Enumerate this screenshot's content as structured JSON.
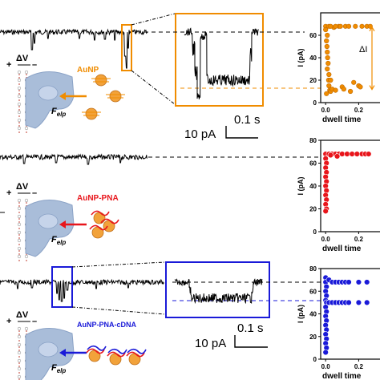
{
  "colors": {
    "orange": "#f08c00",
    "red": "#e8151b",
    "blue": "#1a1ad8",
    "trace": "#000000",
    "pore": "#a9bdd9",
    "np_fill": "#f2a23a"
  },
  "rows": [
    {
      "label": "AuNP",
      "label_color": "#f08c00",
      "dv_label": "ΔV",
      "plus": "+",
      "minus": "–",
      "force_label": "F",
      "force_sub": "elp",
      "zoom": {
        "scale_time": "0.1 s",
        "scale_current": "10 pA"
      },
      "scatter": {
        "ylabel": "I (pA)",
        "xlabel": "dwell time",
        "yticks": [
          "0",
          "20",
          "40",
          "60"
        ],
        "xticks": [
          "0.0",
          "0.2"
        ],
        "delta_label": "ΔI"
      }
    },
    {
      "label": "AuNP-PNA",
      "label_color": "#e8151b",
      "dv_label": "ΔV",
      "plus": "+",
      "minus": "–",
      "force_label": "F",
      "force_sub": "elp",
      "scatter": {
        "ylabel": "I (pA)",
        "xlabel": "dwell time",
        "yticks": [
          "0",
          "20",
          "40",
          "60",
          "80"
        ],
        "xticks": [
          "0.0",
          "0.2"
        ]
      }
    },
    {
      "label": "AuNP-PNA-cDNA",
      "label_color": "#1a1ad8",
      "dv_label": "ΔV",
      "plus": "+",
      "minus": "–",
      "force_label": "F",
      "force_sub": "elp",
      "zoom": {
        "scale_time": "0.1 s",
        "scale_current": "10 pA"
      },
      "scatter": {
        "ylabel": "I (pA)",
        "xlabel": "dwell time",
        "yticks": [
          "0",
          "20",
          "40",
          "60",
          "80"
        ],
        "xticks": [
          "0.0",
          "0.2"
        ]
      }
    }
  ],
  "chart_data": [
    {
      "type": "scatter",
      "name": "AuNP dwell time vs current",
      "xlabel": "dwell time",
      "ylabel": "I (pA)",
      "xlim": [
        -0.03,
        0.3
      ],
      "ylim": [
        0,
        80
      ],
      "baseline": 68,
      "blocked_level": 11,
      "points": [
        [
          0.0,
          68
        ],
        [
          0.0,
          65
        ],
        [
          0.01,
          60
        ],
        [
          0.005,
          55
        ],
        [
          0.008,
          50
        ],
        [
          0.01,
          45
        ],
        [
          0.012,
          40
        ],
        [
          0.015,
          35
        ],
        [
          0.01,
          30
        ],
        [
          0.02,
          25
        ],
        [
          0.018,
          20
        ],
        [
          0.02,
          15
        ],
        [
          0.025,
          11
        ],
        [
          0.03,
          10
        ],
        [
          0.005,
          8
        ],
        [
          0.04,
          12
        ],
        [
          0.06,
          11
        ],
        [
          0.1,
          14
        ],
        [
          0.11,
          12
        ],
        [
          0.15,
          10
        ],
        [
          0.17,
          18
        ],
        [
          0.2,
          15
        ],
        [
          0.21,
          14
        ],
        [
          0.03,
          20
        ],
        [
          0.08,
          68
        ],
        [
          0.12,
          68
        ],
        [
          0.18,
          68
        ],
        [
          0.22,
          68
        ],
        [
          0.25,
          68
        ],
        [
          0.27,
          68
        ],
        [
          0.05,
          67
        ],
        [
          0.02,
          68
        ],
        [
          0.03,
          68
        ],
        [
          0.06,
          68
        ],
        [
          0.09,
          68
        ],
        [
          0.14,
          68
        ]
      ]
    },
    {
      "type": "scatter",
      "name": "AuNP-PNA dwell time vs current",
      "xlabel": "dwell time",
      "ylabel": "I (pA)",
      "xlim": [
        -0.03,
        0.3
      ],
      "ylim": [
        0,
        80
      ],
      "points": [
        [
          0.0,
          68
        ],
        [
          0.0,
          64
        ],
        [
          0.005,
          60
        ],
        [
          0.0,
          56
        ],
        [
          0.005,
          52
        ],
        [
          0.0,
          48
        ],
        [
          0.005,
          44
        ],
        [
          0.0,
          40
        ],
        [
          0.005,
          36
        ],
        [
          0.0,
          32
        ],
        [
          0.005,
          28
        ],
        [
          0.0,
          24
        ],
        [
          0.005,
          20
        ],
        [
          0.0,
          18
        ],
        [
          0.02,
          68
        ],
        [
          0.04,
          68
        ],
        [
          0.06,
          68
        ],
        [
          0.08,
          68
        ],
        [
          0.1,
          68
        ],
        [
          0.13,
          68
        ],
        [
          0.16,
          68
        ],
        [
          0.19,
          68
        ],
        [
          0.22,
          68
        ],
        [
          0.24,
          68
        ],
        [
          0.26,
          68
        ],
        [
          0.03,
          67
        ],
        [
          0.07,
          66
        ]
      ]
    },
    {
      "type": "scatter",
      "name": "AuNP-PNA-cDNA dwell time vs current",
      "xlabel": "dwell time",
      "ylabel": "I (pA)",
      "xlim": [
        -0.03,
        0.3
      ],
      "ylim": [
        0,
        80
      ],
      "baseline": 68,
      "blocked_level": 50,
      "points": [
        [
          0.0,
          72
        ],
        [
          0.0,
          68
        ],
        [
          0.005,
          64
        ],
        [
          0.0,
          60
        ],
        [
          0.005,
          56
        ],
        [
          0.0,
          52
        ],
        [
          0.005,
          50
        ],
        [
          0.0,
          46
        ],
        [
          0.005,
          42
        ],
        [
          0.0,
          38
        ],
        [
          0.005,
          34
        ],
        [
          0.0,
          30
        ],
        [
          0.005,
          26
        ],
        [
          0.0,
          22
        ],
        [
          0.005,
          18
        ],
        [
          0.0,
          14
        ],
        [
          0.005,
          10
        ],
        [
          0.0,
          6
        ],
        [
          0.02,
          70
        ],
        [
          0.04,
          68
        ],
        [
          0.06,
          68
        ],
        [
          0.08,
          68
        ],
        [
          0.1,
          68
        ],
        [
          0.12,
          68
        ],
        [
          0.14,
          68
        ],
        [
          0.2,
          68
        ],
        [
          0.25,
          68
        ],
        [
          0.02,
          50
        ],
        [
          0.04,
          50
        ],
        [
          0.06,
          50
        ],
        [
          0.08,
          50
        ],
        [
          0.1,
          50
        ],
        [
          0.12,
          50
        ],
        [
          0.14,
          50
        ],
        [
          0.2,
          50
        ],
        [
          0.25,
          50
        ]
      ]
    }
  ]
}
